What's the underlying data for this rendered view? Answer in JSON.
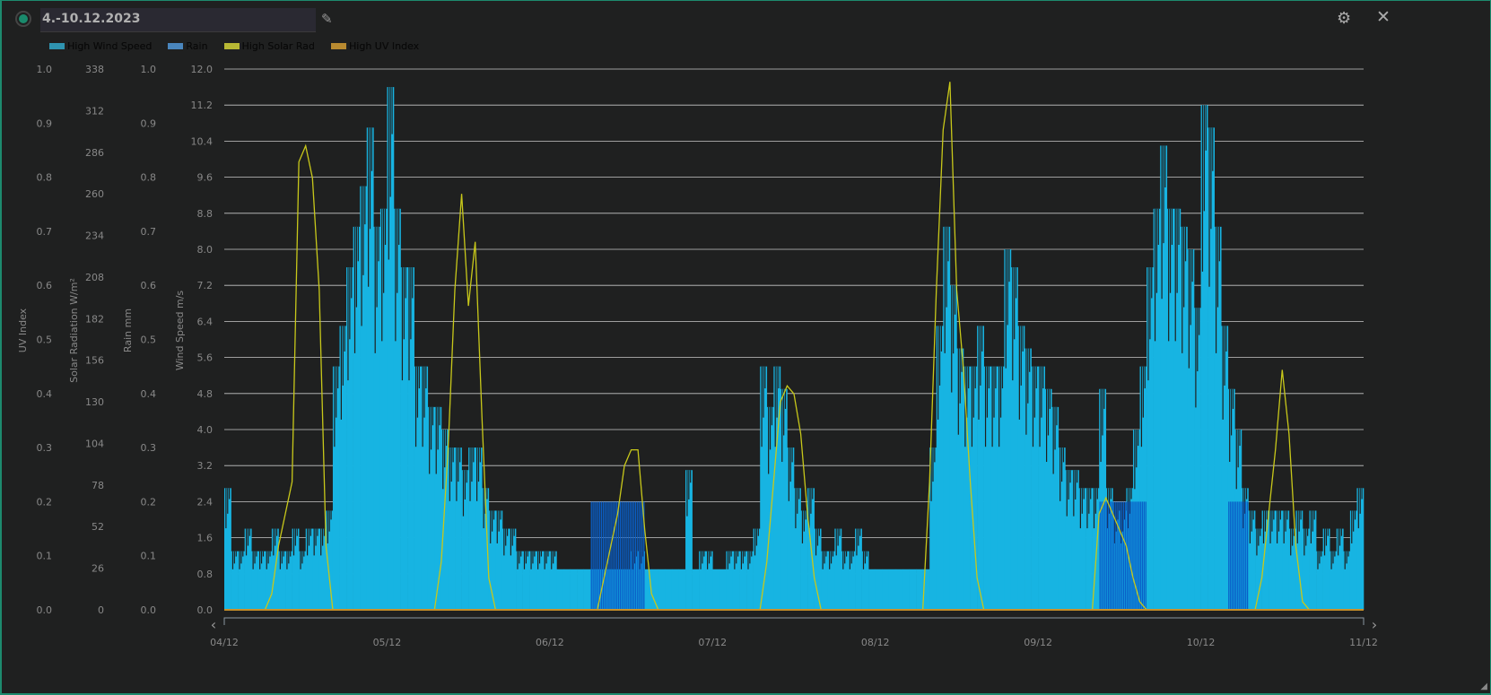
{
  "header": {
    "title": "4.-10.12.2023",
    "status_color": "#1a8a6c"
  },
  "legend": [
    {
      "label": "High Wind Speed",
      "color": "#2f94b0"
    },
    {
      "label": "Rain",
      "color": "#4a86bd"
    },
    {
      "label": "High Solar Rad",
      "color": "#b8b834"
    },
    {
      "label": "High UV Index",
      "color": "#b88a30"
    }
  ],
  "icons": {
    "status": "status-dot-icon",
    "edit": "pencil-icon",
    "settings": "gear-icon",
    "close": "close-icon",
    "prev": "chevron-left-icon",
    "next": "chevron-right-icon"
  },
  "chart_data": {
    "type": "area",
    "interval": "hourly",
    "categories": [
      "04/12",
      "05/12",
      "06/12",
      "07/12",
      "08/12",
      "09/12",
      "10/12",
      "11/12"
    ],
    "axes": {
      "uv": {
        "label": "UV Index",
        "range": [
          0,
          1
        ],
        "ticks": [
          "0.0",
          "0.1",
          "0.2",
          "0.3",
          "0.4",
          "0.5",
          "0.6",
          "0.7",
          "0.8",
          "0.9",
          "1.0"
        ]
      },
      "solar": {
        "label": "Solar Radiation W/m²",
        "range": [
          0,
          338
        ],
        "ticks": [
          "0",
          "26",
          "52",
          "78",
          "104",
          "130",
          "156",
          "182",
          "208",
          "234",
          "260",
          "286",
          "312",
          "338"
        ]
      },
      "rain": {
        "label": "Rain mm",
        "range": [
          0,
          1
        ],
        "ticks": [
          "0.0",
          "0.1",
          "0.2",
          "0.3",
          "0.4",
          "0.5",
          "0.6",
          "0.7",
          "0.8",
          "0.9",
          "1.0"
        ]
      },
      "wind": {
        "label": "Wind Speed m/s",
        "range": [
          0,
          12
        ],
        "ticks": [
          "0.0",
          "0.8",
          "1.6",
          "2.4",
          "3.2",
          "4.0",
          "4.8",
          "5.6",
          "6.4",
          "7.2",
          "8.0",
          "8.8",
          "9.6",
          "10.4",
          "11.2",
          "12.0"
        ]
      }
    },
    "grid": true,
    "legend_position": "top-left",
    "series": [
      {
        "name": "High Wind Speed",
        "axis": "wind",
        "color": "#17b4e2",
        "values": {
          "04/12": [
            2.7,
            1.3,
            1.3,
            1.8,
            1.3,
            1.3,
            1.3,
            1.8,
            1.3,
            1.3,
            1.8,
            1.3,
            1.8,
            1.8,
            1.8,
            2.2,
            5.4,
            6.3,
            7.6,
            8.5,
            9.4,
            10.7,
            8.5,
            8.9
          ],
          "05/12": [
            11.6,
            8.9,
            7.6,
            7.6,
            5.4,
            5.4,
            4.5,
            4.5,
            4.0,
            3.6,
            3.6,
            3.1,
            3.6,
            3.6,
            2.7,
            2.2,
            2.2,
            1.8,
            1.8,
            1.3,
            1.3,
            1.3,
            1.3,
            1.3
          ],
          "06/12": [
            1.3,
            0.9,
            0.9,
            0.9,
            0.9,
            0.9,
            0.9,
            0.9,
            0.9,
            0.9,
            0.9,
            0.9,
            1.3,
            1.3,
            0.9,
            0.9,
            0.9,
            0.9,
            0.9,
            0.9,
            3.1,
            0.9,
            1.3,
            1.3
          ],
          "07/12": [
            0.9,
            0.9,
            1.3,
            1.3,
            1.3,
            1.3,
            1.8,
            5.4,
            4.5,
            5.4,
            4.9,
            3.6,
            2.7,
            2.2,
            2.7,
            1.8,
            1.3,
            1.3,
            1.8,
            1.3,
            1.3,
            1.8,
            1.3,
            0.9
          ],
          "08/12": [
            0.9,
            0.9,
            0.9,
            0.9,
            0.9,
            0.9,
            0.9,
            0.9,
            3.6,
            6.3,
            8.5,
            7.2,
            5.8,
            5.4,
            5.4,
            6.3,
            5.4,
            5.4,
            5.4,
            8.0,
            7.6,
            6.3,
            5.8,
            5.4
          ],
          "09/12": [
            5.4,
            4.9,
            4.5,
            3.6,
            3.1,
            3.1,
            2.7,
            2.7,
            2.7,
            4.9,
            2.7,
            2.2,
            2.2,
            2.7,
            4.0,
            5.4,
            7.6,
            8.9,
            10.3,
            8.9,
            8.9,
            8.5,
            8.0,
            6.7
          ],
          "10/12": [
            11.2,
            10.7,
            8.5,
            6.3,
            4.9,
            4.0,
            2.7,
            2.2,
            1.8,
            2.2,
            2.2,
            2.2,
            2.2,
            1.8,
            2.2,
            1.8,
            2.2,
            1.3,
            1.8,
            1.3,
            1.8,
            1.3,
            2.2,
            2.7
          ]
        }
      },
      {
        "name": "Rain",
        "axis": "rain",
        "color": "#0a5fc8",
        "values": {
          "06/12": [
            0,
            0,
            0,
            0,
            0,
            0,
            0.2,
            0.2,
            0.2,
            0.2,
            0.2,
            0.2,
            0.2,
            0.2,
            0,
            0,
            0,
            0,
            0,
            0,
            0,
            0,
            0,
            0
          ],
          "09/12": [
            0,
            0,
            0,
            0,
            0,
            0,
            0,
            0,
            0,
            0.2,
            0.2,
            0.2,
            0.2,
            0.2,
            0.2,
            0.2,
            0,
            0,
            0,
            0,
            0,
            0,
            0,
            0
          ],
          "10/12": [
            0,
            0,
            0,
            0,
            0.2,
            0.2,
            0.2,
            0,
            0,
            0,
            0,
            0,
            0,
            0,
            0,
            0,
            0,
            0,
            0,
            0,
            0,
            0,
            0,
            0
          ]
        }
      },
      {
        "name": "High Solar Rad",
        "axis": "solar",
        "color": "#c8c81a",
        "values": {
          "04/12": [
            0,
            0,
            0,
            0,
            0,
            0,
            0,
            10,
            40,
            60,
            80,
            280,
            290,
            270,
            200,
            40,
            0,
            0,
            0,
            0,
            0,
            0,
            0,
            0
          ],
          "05/12": [
            0,
            0,
            0,
            0,
            0,
            0,
            0,
            0,
            30,
            100,
            200,
            260,
            190,
            230,
            120,
            20,
            0,
            0,
            0,
            0,
            0,
            0,
            0,
            0
          ],
          "06/12": [
            0,
            0,
            0,
            0,
            0,
            0,
            0,
            0,
            20,
            40,
            60,
            90,
            100,
            100,
            50,
            10,
            0,
            0,
            0,
            0,
            0,
            0,
            0,
            0
          ],
          "07/12": [
            0,
            0,
            0,
            0,
            0,
            0,
            0,
            0,
            30,
            80,
            130,
            140,
            135,
            110,
            60,
            20,
            0,
            0,
            0,
            0,
            0,
            0,
            0,
            0
          ],
          "08/12": [
            0,
            0,
            0,
            0,
            0,
            0,
            0,
            0,
            80,
            200,
            300,
            330,
            200,
            150,
            80,
            20,
            0,
            0,
            0,
            0,
            0,
            0,
            0,
            0
          ],
          "09/12": [
            0,
            0,
            0,
            0,
            0,
            0,
            0,
            0,
            0,
            60,
            70,
            60,
            50,
            40,
            20,
            5,
            0,
            0,
            0,
            0,
            0,
            0,
            0,
            0
          ],
          "10/12": [
            0,
            0,
            0,
            0,
            0,
            0,
            0,
            0,
            0,
            20,
            60,
            100,
            150,
            110,
            40,
            5,
            0,
            0,
            0,
            0,
            0,
            0,
            0,
            0
          ]
        }
      },
      {
        "name": "High UV Index",
        "axis": "uv",
        "color": "#c8902a",
        "values": {}
      }
    ]
  }
}
